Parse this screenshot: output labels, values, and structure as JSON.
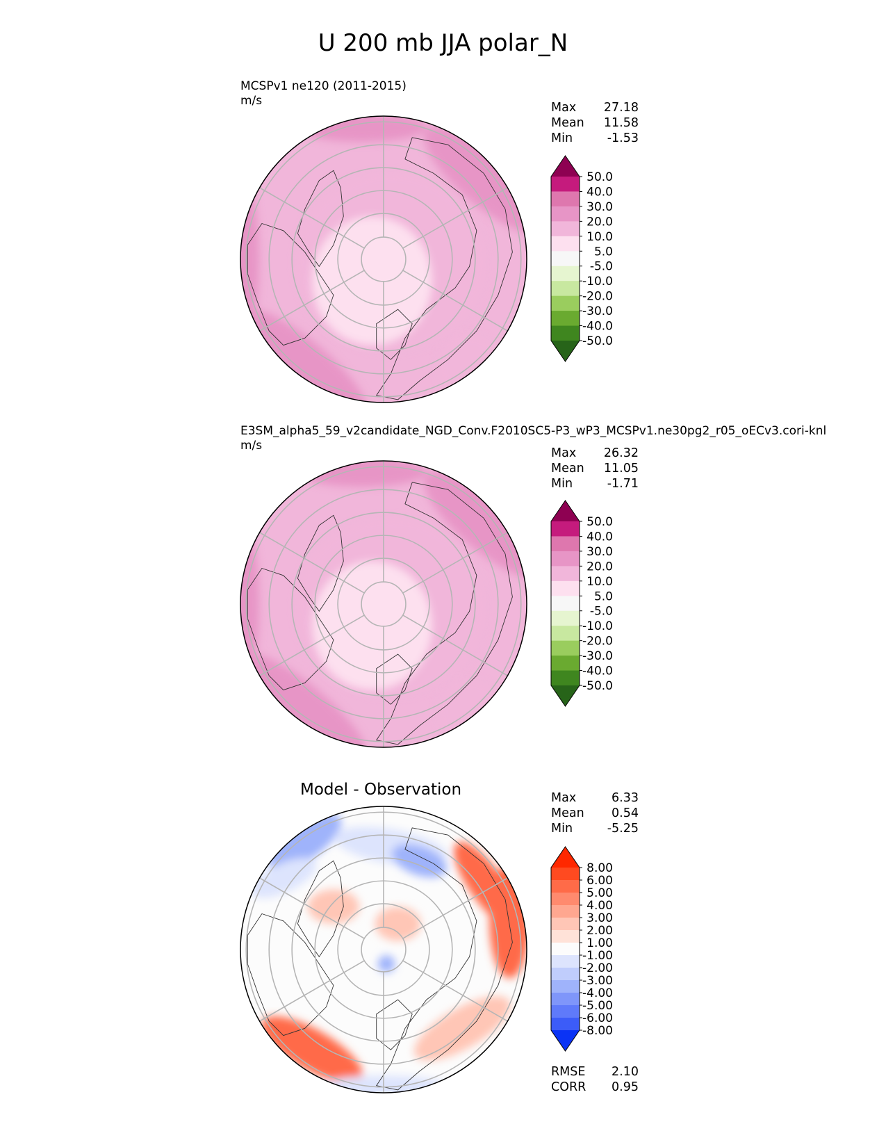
{
  "figure": {
    "title": "U 200 mb JJA polar_N"
  },
  "chart_data": [
    {
      "type": "heatmap",
      "projection": "north-polar-stereographic",
      "title": "MCSPv1 ne120 (2011-2015)",
      "units": "m/s",
      "stats": [
        {
          "label": "Max",
          "value": "27.18"
        },
        {
          "label": "Mean",
          "value": "11.58"
        },
        {
          "label": "Min",
          "value": "-1.53"
        }
      ],
      "colorbar": {
        "ticks": [
          "50.0",
          "40.0",
          "30.0",
          "20.0",
          "10.0",
          "5.0",
          "-5.0",
          "-10.0",
          "-20.0",
          "-30.0",
          "-40.0",
          "-50.0"
        ],
        "colors": [
          "#8e0152",
          "#c51b7d",
          "#de77ae",
          "#e795c6",
          "#f1b6da",
          "#fde0ef",
          "#f7f7f7",
          "#e6f5d0",
          "#c8e8a0",
          "#9acd5e",
          "#6aaa30",
          "#3f861f",
          "#276419"
        ],
        "extend": "both"
      },
      "field": {
        "polar_region": 5,
        "subpolar_ring": 10,
        "midlat_ring": 15,
        "pacific_jet": 25,
        "atlantic_jet": 20,
        "south_atlantic": 15
      }
    },
    {
      "type": "heatmap",
      "projection": "north-polar-stereographic",
      "title": "E3SM_alpha5_59_v2candidate_NGD_Conv.F2010SC5-P3_wP3_MCSPv1.ne30pg2_r05_oECv3.cori-knl",
      "units": "m/s",
      "stats": [
        {
          "label": "Max",
          "value": "26.32"
        },
        {
          "label": "Mean",
          "value": "11.05"
        },
        {
          "label": "Min",
          "value": "-1.71"
        }
      ],
      "colorbar": {
        "ticks": [
          "50.0",
          "40.0",
          "30.0",
          "20.0",
          "10.0",
          "5.0",
          "-5.0",
          "-10.0",
          "-20.0",
          "-30.0",
          "-40.0",
          "-50.0"
        ],
        "colors": [
          "#8e0152",
          "#c51b7d",
          "#de77ae",
          "#e795c6",
          "#f1b6da",
          "#fde0ef",
          "#f7f7f7",
          "#e6f5d0",
          "#c8e8a0",
          "#9acd5e",
          "#6aaa30",
          "#3f861f",
          "#276419"
        ],
        "extend": "both"
      },
      "field": {
        "polar_region": 5,
        "subpolar_ring": 10,
        "midlat_ring": 15,
        "pacific_jet": 25,
        "atlantic_jet": 25,
        "south_atlantic": 15
      }
    },
    {
      "type": "heatmap",
      "projection": "north-polar-stereographic",
      "title": "Model - Observation",
      "stats": [
        {
          "label": "Max",
          "value": "6.33"
        },
        {
          "label": "Mean",
          "value": "0.54"
        },
        {
          "label": "Min",
          "value": "-5.25"
        }
      ],
      "metrics": [
        {
          "label": "RMSE",
          "value": "2.10"
        },
        {
          "label": "CORR",
          "value": "0.95"
        }
      ],
      "colorbar": {
        "ticks": [
          "8.00",
          "6.00",
          "5.00",
          "4.00",
          "3.00",
          "2.00",
          "1.00",
          "-1.00",
          "-2.00",
          "-3.00",
          "-4.00",
          "-5.00",
          "-6.00",
          "-8.00"
        ],
        "colors": [
          "#ff2800",
          "#ff4a20",
          "#ff6b48",
          "#ff8a6e",
          "#ffa790",
          "#ffc6b6",
          "#ffe2d8",
          "#fcfcfc",
          "#dde4fd",
          "#c0cdfc",
          "#9fb3fb",
          "#7f96fa",
          "#5f7afa",
          "#3c5cf8",
          "#0a33f5"
        ],
        "extend": "both"
      },
      "field": {
        "blue_areas": -4,
        "red_areas": 5,
        "light_red": 2,
        "light_blue": -2
      }
    }
  ]
}
